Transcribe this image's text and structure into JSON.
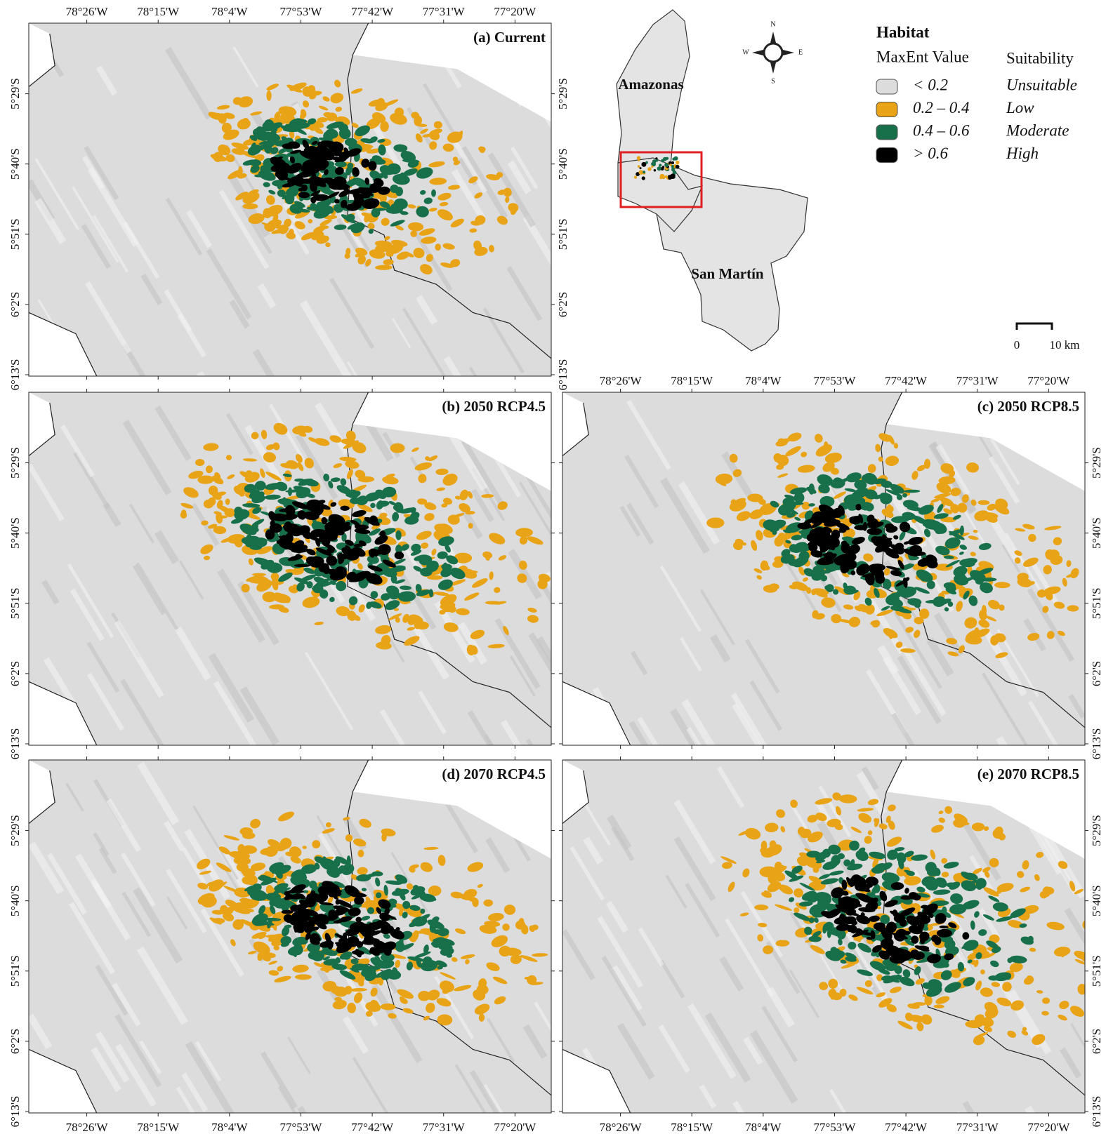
{
  "panels": [
    {
      "label": "(a) Current"
    },
    {
      "label": "(b) 2050 RCP4.5"
    },
    {
      "label": "(c) 2050 RCP8.5"
    },
    {
      "label": "(d) 2070 RCP4.5"
    },
    {
      "label": "(e) 2070 RCP8.5"
    }
  ],
  "longitude_labels": [
    "78°26'W",
    "78°15'W",
    "78°4'W",
    "77°53'W",
    "77°42'W",
    "77°31'W",
    "77°20'W"
  ],
  "latitude_labels": [
    "5°29'S",
    "5°40'S",
    "5°51'S",
    "6°2'S",
    "6°13'S"
  ],
  "inset": {
    "regions": [
      "Amazonas",
      "San Martín"
    ]
  },
  "compass": {
    "north": "N",
    "east": "E",
    "south": "S",
    "west": "W"
  },
  "legend": {
    "title": "Habitat",
    "value_header": "MaxEnt Value",
    "suitability_header": "Suitability",
    "rows": [
      {
        "value": "< 0.2",
        "suitability": "Unsuitable",
        "color": "#dcdcdc"
      },
      {
        "value": "0.2 – 0.4",
        "suitability": "Low",
        "color": "#e8a317"
      },
      {
        "value": "0.4 – 0.6",
        "suitability": "Moderate",
        "color": "#18704a"
      },
      {
        "value": "> 0.6",
        "suitability": "High",
        "color": "#000000"
      }
    ]
  },
  "scale_bar": {
    "start": "0",
    "end": "10 km"
  }
}
